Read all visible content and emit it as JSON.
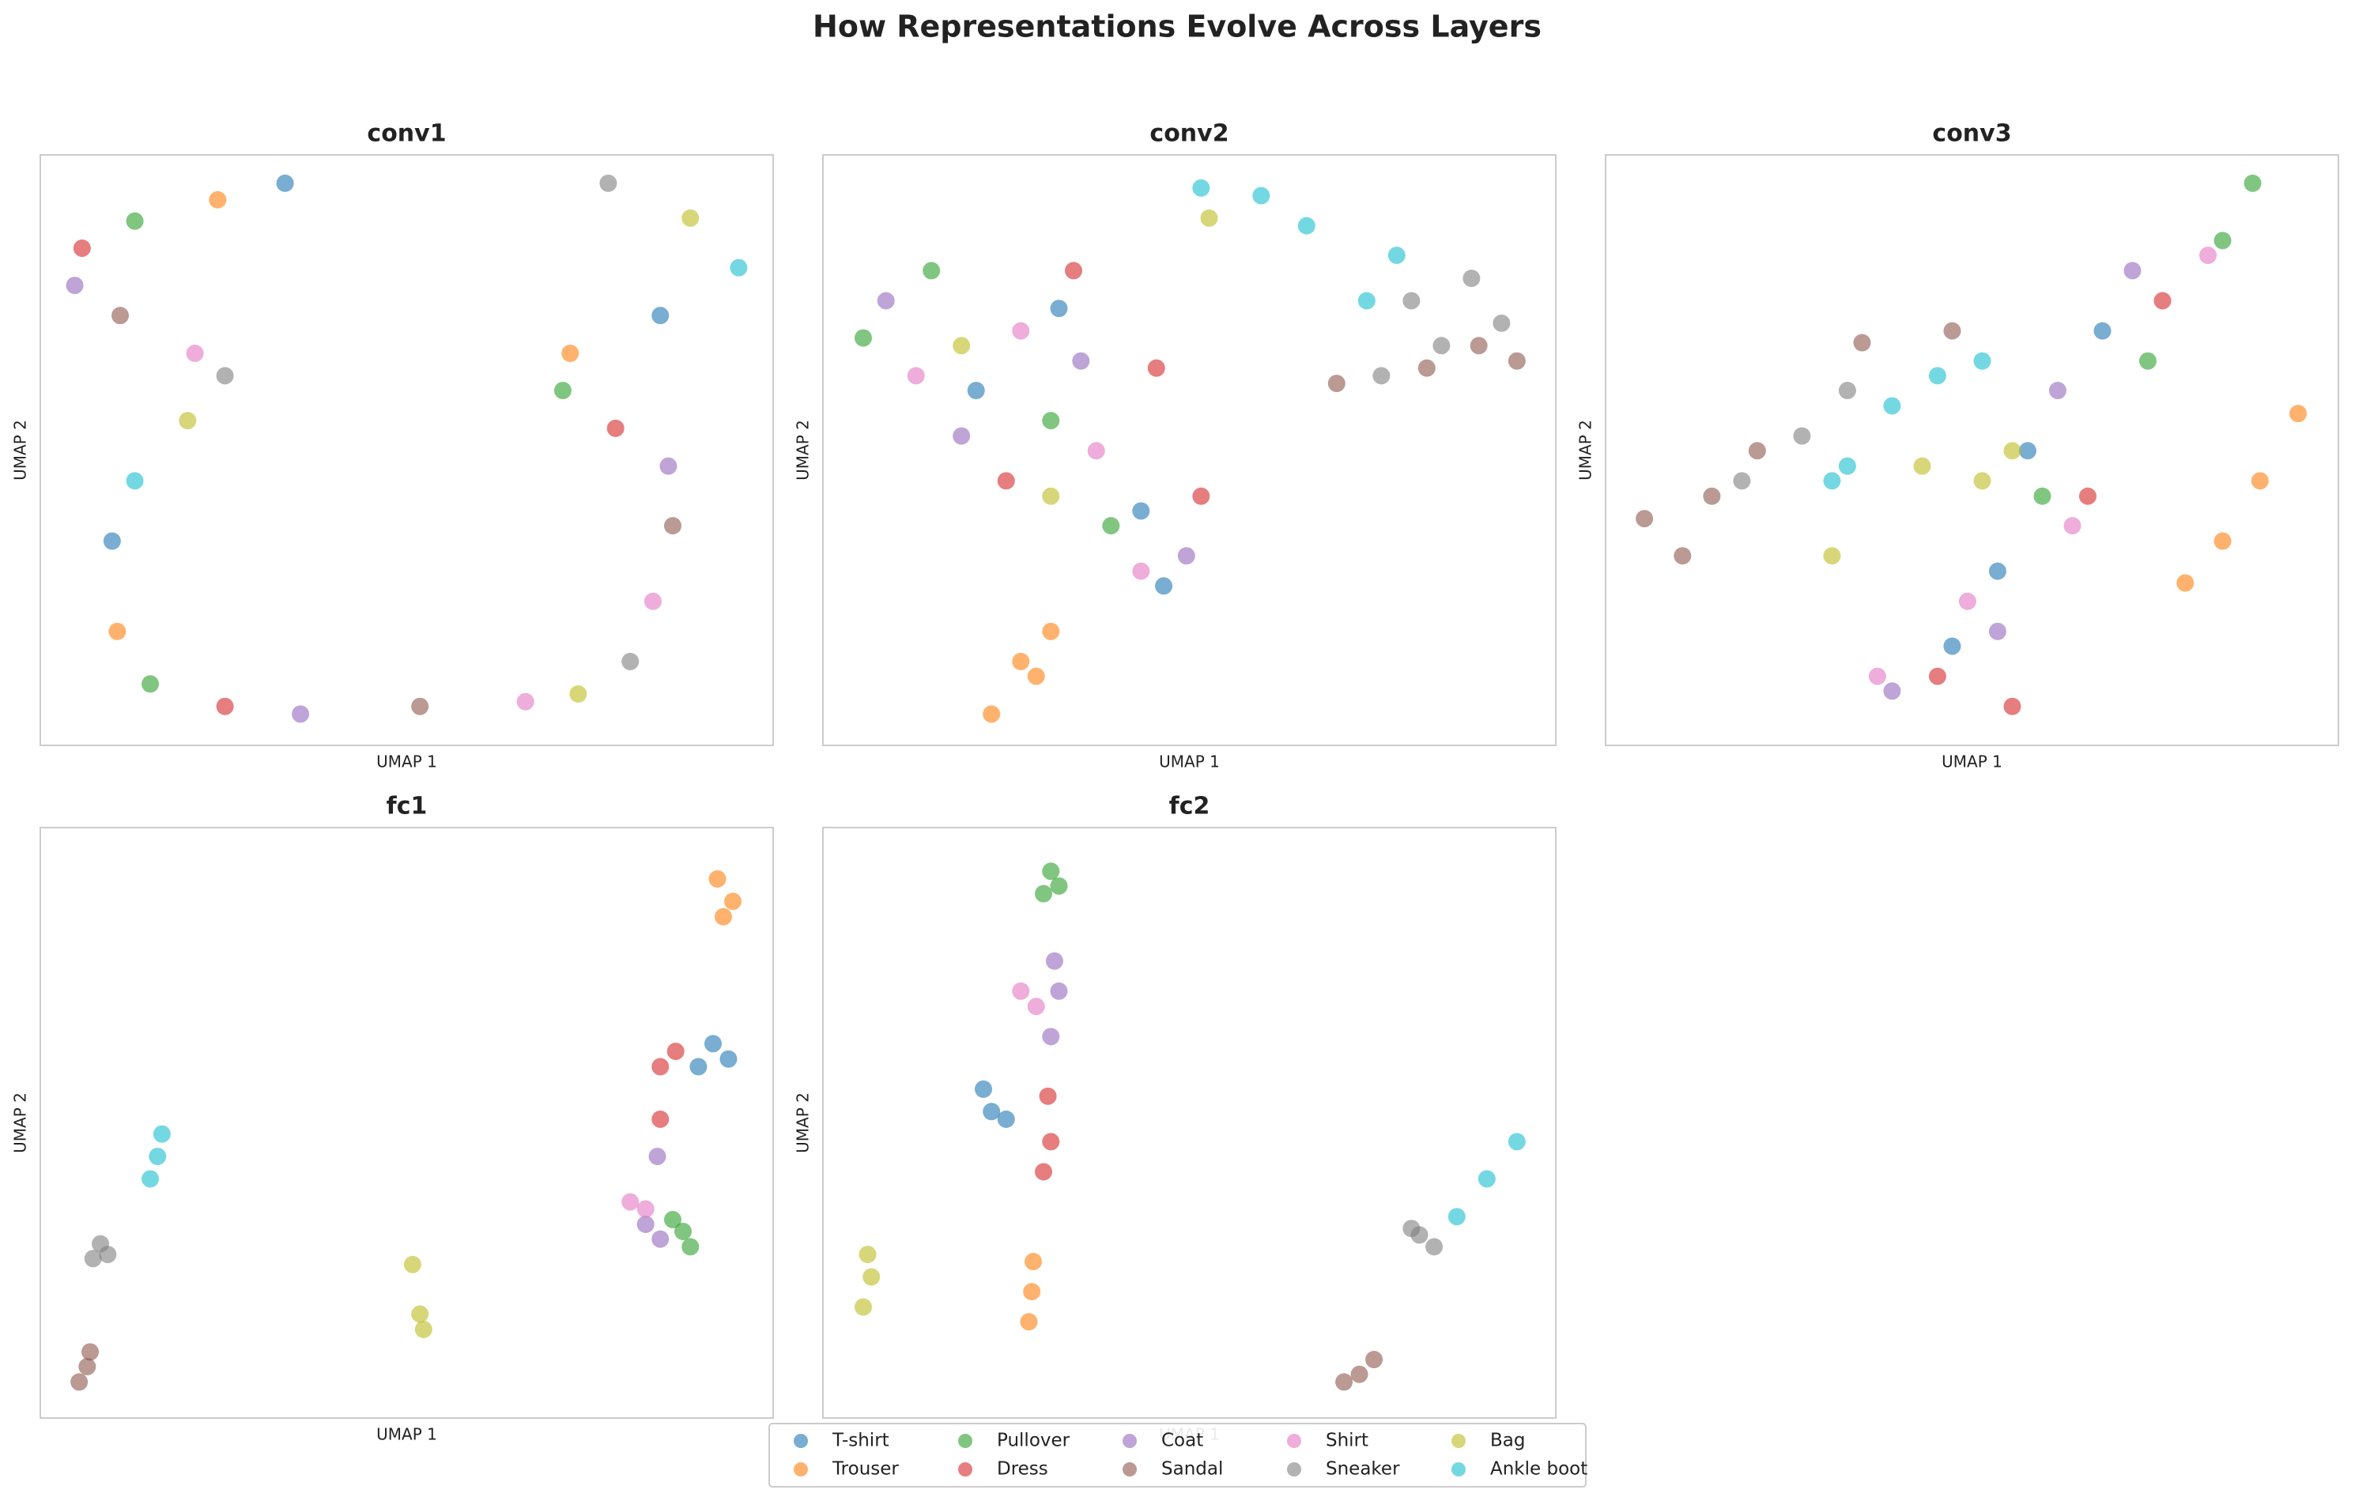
{
  "title": "How Representations Evolve Across Layers",
  "chart_data": [
    {
      "type": "scatter",
      "title": "conv1",
      "xlabel": "UMAP 1",
      "ylabel": "UMAP 2",
      "xlim": [
        0,
        100
      ],
      "ylim": [
        0,
        100
      ],
      "series": [
        {
          "name": "T-shirt",
          "color": "#1f77b4",
          "x": [
            33.4,
            9.8,
            84.6
          ],
          "y": [
            95.2,
            34.6,
            72.8
          ]
        },
        {
          "name": "Trouser",
          "color": "#ff7f0e",
          "x": [
            24.2,
            10.5,
            72.3
          ],
          "y": [
            92.4,
            19.3,
            66.4
          ]
        },
        {
          "name": "Pullover",
          "color": "#2ca02c",
          "x": [
            12.9,
            15.0,
            71.3
          ],
          "y": [
            88.8,
            10.4,
            60.1
          ]
        },
        {
          "name": "Dress",
          "color": "#d62728",
          "x": [
            5.7,
            25.2,
            78.5
          ],
          "y": [
            84.2,
            6.6,
            53.7
          ]
        },
        {
          "name": "Coat",
          "color": "#9467bd",
          "x": [
            4.7,
            35.5,
            85.7
          ],
          "y": [
            77.9,
            5.3,
            47.3
          ]
        },
        {
          "name": "Sandal",
          "color": "#8c564b",
          "x": [
            10.9,
            51.8,
            86.3
          ],
          "y": [
            72.8,
            6.6,
            37.2
          ]
        },
        {
          "name": "Shirt",
          "color": "#e377c2",
          "x": [
            21.1,
            66.2,
            83.6
          ],
          "y": [
            66.4,
            7.4,
            24.4
          ]
        },
        {
          "name": "Sneaker",
          "color": "#7f7f7f",
          "x": [
            25.2,
            77.5,
            80.5
          ],
          "y": [
            62.6,
            95.2,
            14.2
          ]
        },
        {
          "name": "Bag",
          "color": "#bcbd22",
          "x": [
            20.1,
            88.7,
            73.4
          ],
          "y": [
            55.0,
            89.3,
            8.7
          ]
        },
        {
          "name": "Ankle boot",
          "color": "#17becf",
          "x": [
            12.9,
            95.3
          ],
          "y": [
            44.8,
            80.9
          ]
        }
      ]
    },
    {
      "type": "scatter",
      "title": "conv2",
      "xlabel": "UMAP 1",
      "ylabel": "UMAP 2",
      "xlim": [
        0,
        100
      ],
      "ylim": [
        0,
        100
      ],
      "series": [
        {
          "name": "T-shirt",
          "color": "#1f77b4",
          "x": [
            32.2,
            20.9,
            43.4,
            46.5
          ],
          "y": [
            74.0,
            60.1,
            39.7,
            27.0
          ]
        },
        {
          "name": "Trouser",
          "color": "#ff7f0e",
          "x": [
            23.0,
            27.0,
            31.1,
            29.1
          ],
          "y": [
            5.3,
            14.2,
            19.3,
            11.7
          ]
        },
        {
          "name": "Pullover",
          "color": "#2ca02c",
          "x": [
            5.5,
            14.8,
            31.1,
            39.3
          ],
          "y": [
            69.0,
            80.4,
            55.0,
            37.2
          ]
        },
        {
          "name": "Dress",
          "color": "#d62728",
          "x": [
            34.2,
            45.5,
            25.0,
            51.6
          ],
          "y": [
            80.4,
            63.9,
            44.8,
            42.2
          ]
        },
        {
          "name": "Coat",
          "color": "#9467bd",
          "x": [
            8.6,
            18.9,
            35.2,
            49.6
          ],
          "y": [
            75.3,
            52.4,
            65.1,
            32.1
          ]
        },
        {
          "name": "Sandal",
          "color": "#8c564b",
          "x": [
            70.1,
            82.4,
            94.7,
            89.5
          ],
          "y": [
            61.3,
            63.9,
            65.1,
            67.7
          ]
        },
        {
          "name": "Shirt",
          "color": "#e377c2",
          "x": [
            12.7,
            27.0,
            37.3,
            43.4
          ],
          "y": [
            62.6,
            70.2,
            49.9,
            29.5
          ]
        },
        {
          "name": "Sneaker",
          "color": "#7f7f7f",
          "x": [
            80.3,
            88.5,
            84.4,
            76.2,
            92.6
          ],
          "y": [
            75.3,
            79.1,
            67.7,
            62.6,
            71.5
          ]
        },
        {
          "name": "Bag",
          "color": "#bcbd22",
          "x": [
            52.7,
            18.9,
            31.1
          ],
          "y": [
            89.3,
            67.7,
            42.2
          ]
        },
        {
          "name": "Ankle boot",
          "color": "#17becf",
          "x": [
            51.6,
            59.8,
            66.0,
            78.3,
            74.2
          ],
          "y": [
            94.4,
            93.1,
            88.0,
            83.0,
            75.3
          ]
        }
      ]
    },
    {
      "type": "scatter",
      "title": "conv3",
      "xlabel": "UMAP 1",
      "ylabel": "UMAP 2",
      "xlim": [
        0,
        100
      ],
      "ylim": [
        0,
        100
      ],
      "series": [
        {
          "name": "T-shirt",
          "color": "#1f77b4",
          "x": [
            57.6,
            67.8,
            47.3,
            53.5
          ],
          "y": [
            49.9,
            70.2,
            16.8,
            29.5
          ]
        },
        {
          "name": "Trouser",
          "color": "#ff7f0e",
          "x": [
            79.1,
            84.2,
            89.3,
            94.5
          ],
          "y": [
            27.5,
            34.6,
            44.8,
            56.2
          ]
        },
        {
          "name": "Pullover",
          "color": "#2ca02c",
          "x": [
            88.3,
            84.2,
            59.6,
            74.0
          ],
          "y": [
            95.2,
            85.5,
            42.2,
            65.1
          ]
        },
        {
          "name": "Dress",
          "color": "#d62728",
          "x": [
            65.8,
            76.0,
            45.3,
            55.5
          ],
          "y": [
            42.2,
            75.3,
            11.7,
            6.6
          ]
        },
        {
          "name": "Coat",
          "color": "#9467bd",
          "x": [
            71.9,
            61.7,
            39.1,
            53.5
          ],
          "y": [
            80.4,
            60.1,
            9.2,
            19.3
          ]
        },
        {
          "name": "Sandal",
          "color": "#8c564b",
          "x": [
            5.3,
            14.5,
            20.7,
            10.5,
            35.0,
            47.3
          ],
          "y": [
            38.4,
            42.2,
            49.9,
            32.1,
            68.2,
            70.2
          ]
        },
        {
          "name": "Shirt",
          "color": "#e377c2",
          "x": [
            82.2,
            63.7,
            37.1,
            49.4
          ],
          "y": [
            83.0,
            37.2,
            11.7,
            24.4
          ]
        },
        {
          "name": "Sneaker",
          "color": "#7f7f7f",
          "x": [
            18.6,
            33.0,
            26.8
          ],
          "y": [
            44.8,
            60.1,
            52.4
          ]
        },
        {
          "name": "Bag",
          "color": "#bcbd22",
          "x": [
            43.2,
            51.4,
            30.9,
            55.5
          ],
          "y": [
            47.3,
            44.8,
            32.1,
            49.9
          ]
        },
        {
          "name": "Ankle boot",
          "color": "#17becf",
          "x": [
            33.0,
            39.1,
            45.3,
            51.4,
            30.9
          ],
          "y": [
            47.3,
            57.5,
            62.6,
            65.1,
            44.8
          ]
        }
      ]
    },
    {
      "type": "scatter",
      "title": "fc1",
      "xlabel": "UMAP 1",
      "ylabel": "UMAP 2",
      "xlim": [
        0,
        100
      ],
      "ylim": [
        0,
        100
      ],
      "series": [
        {
          "name": "T-shirt",
          "color": "#1f77b4",
          "x": [
            91.8,
            93.9,
            89.8
          ],
          "y": [
            63.4,
            60.8,
            59.5
          ]
        },
        {
          "name": "Trouser",
          "color": "#ff7f0e",
          "x": [
            92.4,
            94.5,
            93.2
          ],
          "y": [
            91.3,
            87.5,
            84.9
          ]
        },
        {
          "name": "Pullover",
          "color": "#2ca02c",
          "x": [
            87.7,
            88.7,
            86.3
          ],
          "y": [
            31.6,
            29.0,
            33.6
          ]
        },
        {
          "name": "Dress",
          "color": "#d62728",
          "x": [
            84.6,
            84.6,
            86.7
          ],
          "y": [
            59.5,
            50.6,
            62.1
          ]
        },
        {
          "name": "Coat",
          "color": "#9467bd",
          "x": [
            84.2,
            82.6,
            84.6
          ],
          "y": [
            44.3,
            32.8,
            30.3
          ]
        },
        {
          "name": "Sandal",
          "color": "#8c564b",
          "x": [
            6.8,
            5.3,
            6.4
          ],
          "y": [
            11.2,
            6.1,
            8.7
          ]
        },
        {
          "name": "Shirt",
          "color": "#e377c2",
          "x": [
            80.5,
            82.6
          ],
          "y": [
            36.6,
            35.4
          ]
        },
        {
          "name": "Sneaker",
          "color": "#7f7f7f",
          "x": [
            8.2,
            9.2,
            7.2
          ],
          "y": [
            29.5,
            27.7,
            27.0
          ]
        },
        {
          "name": "Bag",
          "color": "#bcbd22",
          "x": [
            50.8,
            52.3,
            51.8
          ],
          "y": [
            26.0,
            15.0,
            17.6
          ]
        },
        {
          "name": "Ankle boot",
          "color": "#17becf",
          "x": [
            16.0,
            16.6,
            15.0
          ],
          "y": [
            44.3,
            48.1,
            40.5
          ]
        }
      ]
    },
    {
      "type": "scatter",
      "title": "fc2",
      "xlabel": "UMAP 1",
      "ylabel": "UMAP 2",
      "xlim": [
        0,
        100
      ],
      "ylim": [
        0,
        100
      ],
      "series": [
        {
          "name": "T-shirt",
          "color": "#1f77b4",
          "x": [
            23.0,
            25.0,
            21.9
          ],
          "y": [
            51.9,
            50.6,
            55.7
          ]
        },
        {
          "name": "Trouser",
          "color": "#ff7f0e",
          "x": [
            28.7,
            28.1,
            28.5
          ],
          "y": [
            26.5,
            16.3,
            21.4
          ]
        },
        {
          "name": "Pullover",
          "color": "#2ca02c",
          "x": [
            31.1,
            30.1,
            32.2
          ],
          "y": [
            92.6,
            88.8,
            90.1
          ]
        },
        {
          "name": "Dress",
          "color": "#d62728",
          "x": [
            31.1,
            30.1,
            30.7
          ],
          "y": [
            46.8,
            41.7,
            54.5
          ]
        },
        {
          "name": "Coat",
          "color": "#9467bd",
          "x": [
            31.6,
            31.1,
            32.2
          ],
          "y": [
            77.4,
            64.6,
            72.3
          ]
        },
        {
          "name": "Sandal",
          "color": "#8c564b",
          "x": [
            73.2,
            75.2,
            71.1
          ],
          "y": [
            7.4,
            9.9,
            6.1
          ]
        },
        {
          "name": "Shirt",
          "color": "#e377c2",
          "x": [
            27.0,
            29.1
          ],
          "y": [
            72.3,
            69.7
          ]
        },
        {
          "name": "Sneaker",
          "color": "#7f7f7f",
          "x": [
            81.4,
            83.4,
            80.3
          ],
          "y": [
            31.0,
            29.0,
            32.1
          ]
        },
        {
          "name": "Bag",
          "color": "#bcbd22",
          "x": [
            6.1,
            5.5,
            6.6
          ],
          "y": [
            27.7,
            18.8,
            23.9
          ]
        },
        {
          "name": "Ankle boot",
          "color": "#17becf",
          "x": [
            94.7,
            90.6,
            86.5
          ],
          "y": [
            46.8,
            40.5,
            34.1
          ]
        }
      ]
    }
  ]
}
